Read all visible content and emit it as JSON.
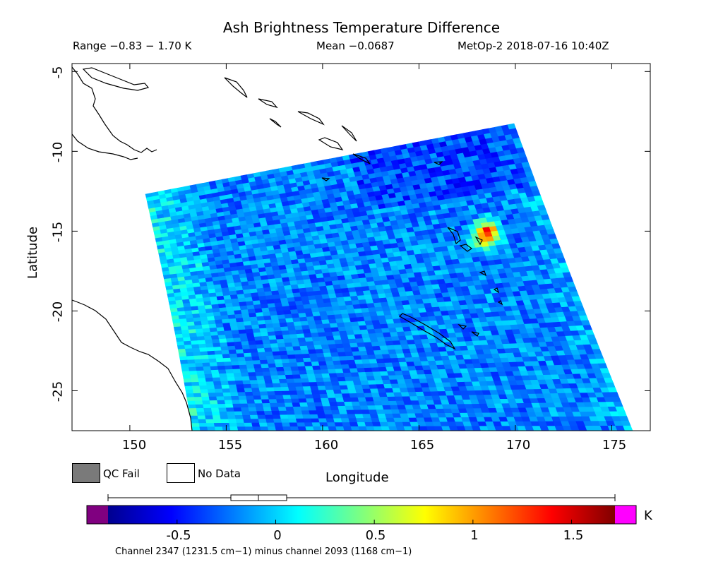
{
  "title": "Ash Brightness Temperature Difference",
  "range_text": "Range −0.83 − 1.70 K",
  "mean_text": "Mean −0.0687",
  "satellite_text": "MetOp-2 2018-07-16 10:40Z",
  "axes": {
    "xlabel": "Longitude",
    "ylabel": "Latitude",
    "x_ticks": [
      "150",
      "155",
      "160",
      "165",
      "170",
      "175"
    ],
    "y_ticks": [
      "-5",
      "-10",
      "-15",
      "-20",
      "-25"
    ],
    "x_range": [
      147,
      177
    ],
    "y_range": [
      -27.5,
      -4.5
    ]
  },
  "legend": {
    "qc_fail_label": "QC Fail",
    "no_data_label": "No Data",
    "qc_fail_color": "#7a7a7a",
    "no_data_color": "#ffffff"
  },
  "colorbar": {
    "unit": "K",
    "tick_labels": [
      "-0.5",
      "0",
      "0.5",
      "1",
      "1.5"
    ],
    "tick_values": [
      -0.5,
      0,
      0.5,
      1,
      1.5
    ],
    "range": [
      -0.85,
      1.72
    ],
    "under_color": "#800080",
    "over_color": "#ff00ff"
  },
  "channel_text": "Channel 2347 (1231.5 cm−1) minus channel 2093 (1168 cm−1)",
  "chart_data": {
    "type": "heatmap",
    "value_range": [
      -0.83,
      1.7
    ],
    "mean": -0.0687,
    "hotspot": {
      "lon": 168.5,
      "lat": -15.2,
      "peak_value": 1.6
    }
  }
}
